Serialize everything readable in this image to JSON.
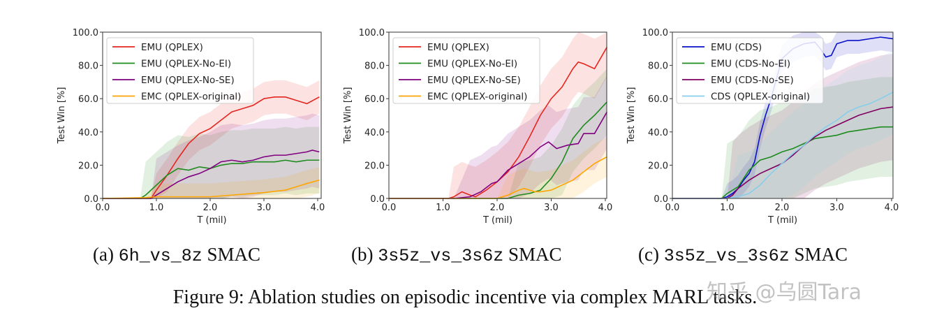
{
  "chart_data": [
    {
      "type": "line",
      "xlabel": "T (mil)",
      "ylabel": "Test Win [%]",
      "xlim": [
        0,
        4.03
      ],
      "ylim": [
        0,
        100
      ],
      "xticks": [
        "0.0",
        "1.0",
        "2.0",
        "3.0",
        "4.0"
      ],
      "yticks": [
        "0.0",
        "20.0",
        "40.0",
        "60.0",
        "80.0",
        "100.0"
      ],
      "grid": false,
      "legend_position": "top-left",
      "shaded_std_bands": true,
      "series": [
        {
          "name": "EMU (QPLEX)",
          "color": "#e5261f",
          "spread": 10,
          "x": [
            0,
            0.8,
            0.9,
            1.0,
            1.2,
            1.4,
            1.6,
            1.8,
            2.0,
            2.2,
            2.4,
            2.6,
            2.8,
            3.0,
            3.2,
            3.4,
            3.6,
            3.8,
            4.03
          ],
          "y": [
            0,
            0,
            0,
            5,
            14,
            24,
            33,
            39,
            42,
            47,
            52,
            54,
            56,
            60,
            61,
            61,
            59,
            57,
            61
          ]
        },
        {
          "name": "EMU (QPLEX-No-EI)",
          "color": "#1e8b1e",
          "spread": 20,
          "x": [
            0,
            0.7,
            0.8,
            1.0,
            1.2,
            1.4,
            1.6,
            1.8,
            2.0,
            2.2,
            2.4,
            2.6,
            2.8,
            3.0,
            3.2,
            3.4,
            3.6,
            3.8,
            4.03
          ],
          "y": [
            0,
            0,
            2,
            8,
            14,
            18,
            17,
            19,
            18,
            20,
            21,
            21,
            22,
            22,
            22,
            23,
            22,
            23,
            23
          ]
        },
        {
          "name": "EMU (QPLEX-No-SE)",
          "color": "#800080",
          "spread": 22,
          "x": [
            0,
            0.9,
            1.0,
            1.2,
            1.4,
            1.6,
            1.8,
            2.0,
            2.2,
            2.4,
            2.6,
            2.8,
            3.0,
            3.2,
            3.4,
            3.6,
            3.8,
            3.9,
            4.03
          ],
          "y": [
            0,
            0,
            2,
            6,
            10,
            13,
            15,
            18,
            22,
            23,
            22,
            23,
            25,
            26,
            26,
            27,
            28,
            29,
            28
          ]
        },
        {
          "name": "EMC (QPLEX-original)",
          "color": "#ffa500",
          "spread": 8,
          "x": [
            0,
            0.8,
            1.0,
            1.5,
            2.0,
            2.4,
            2.8,
            3.0,
            3.4,
            3.6,
            3.8,
            4.03
          ],
          "y": [
            0,
            0.5,
            1,
            1,
            1,
            2,
            3,
            3.5,
            5,
            7,
            9,
            11
          ]
        }
      ]
    },
    {
      "type": "line",
      "xlabel": "T (mil)",
      "ylabel": "Test Win [%]",
      "xlim": [
        0,
        4.03
      ],
      "ylim": [
        0,
        100
      ],
      "xticks": [
        "0.0",
        "1.0",
        "2.0",
        "3.0",
        "4.0"
      ],
      "yticks": [
        "0.0",
        "20.0",
        "40.0",
        "60.0",
        "80.0",
        "100.0"
      ],
      "grid": false,
      "legend_position": "top-left",
      "shaded_std_bands": true,
      "series": [
        {
          "name": "EMU (QPLEX)",
          "color": "#e5261f",
          "spread": 18,
          "x": [
            0,
            1.1,
            1.2,
            1.35,
            1.5,
            1.6,
            1.8,
            2.0,
            2.2,
            2.4,
            2.6,
            2.8,
            3.0,
            3.2,
            3.4,
            3.5,
            3.6,
            3.8,
            4.03
          ],
          "y": [
            0,
            0,
            1,
            4,
            2,
            1,
            5,
            10,
            16,
            25,
            37,
            50,
            60,
            67,
            78,
            82,
            81,
            78,
            91
          ]
        },
        {
          "name": "EMU (QPLEX-No-EI)",
          "color": "#1e8b1e",
          "spread": 20,
          "x": [
            0,
            2.2,
            2.4,
            2.6,
            2.8,
            3.0,
            3.2,
            3.4,
            3.6,
            3.8,
            4.03
          ],
          "y": [
            0,
            0,
            2,
            3,
            5,
            12,
            22,
            36,
            44,
            50,
            58
          ]
        },
        {
          "name": "EMU (QPLEX-No-SE)",
          "color": "#800080",
          "spread": 22,
          "x": [
            0,
            1.2,
            1.5,
            1.7,
            1.9,
            2.0,
            2.2,
            2.4,
            2.6,
            2.8,
            2.95,
            3.1,
            3.3,
            3.5,
            3.6,
            3.8,
            4.03
          ],
          "y": [
            0,
            0,
            1,
            4,
            9,
            10,
            17,
            21,
            25,
            31,
            34,
            30,
            32,
            33,
            39,
            39,
            52
          ]
        },
        {
          "name": "EMC (QPLEX-original)",
          "color": "#ffa500",
          "spread": 12,
          "x": [
            0,
            2.0,
            2.2,
            2.4,
            2.5,
            2.7,
            2.8,
            3.0,
            3.2,
            3.4,
            3.6,
            3.8,
            4.03
          ],
          "y": [
            0,
            0,
            2,
            5,
            6,
            4,
            4,
            5,
            8,
            11,
            16,
            21,
            25
          ]
        }
      ]
    },
    {
      "type": "line",
      "xlabel": "T (mil)",
      "ylabel": "Test Win [%]",
      "xlim": [
        0,
        4.03
      ],
      "ylim": [
        0,
        100
      ],
      "xticks": [
        "0.0",
        "1.0",
        "2.0",
        "3.0",
        "4.0"
      ],
      "yticks": [
        "0.0",
        "20.0",
        "40.0",
        "60.0",
        "80.0",
        "100.0"
      ],
      "grid": false,
      "legend_position": "top-left",
      "shaded_std_bands": true,
      "series": [
        {
          "name": "EMU (CDS)",
          "color": "#0a10c8",
          "spread": 8,
          "x": [
            0,
            0.9,
            1.0,
            1.1,
            1.2,
            1.3,
            1.4,
            1.5,
            1.6,
            1.7,
            1.8,
            1.9,
            2.0,
            2.2,
            2.4,
            2.6,
            2.7,
            2.8,
            2.9,
            3.0,
            3.2,
            3.4,
            3.6,
            3.8,
            4.03
          ],
          "y": [
            0,
            0,
            1,
            3,
            6,
            11,
            15,
            22,
            38,
            50,
            60,
            72,
            84,
            90,
            93,
            94,
            90,
            85,
            86,
            93,
            95,
            95,
            96,
            97,
            96
          ]
        },
        {
          "name": "EMU (CDS-No-EI)",
          "color": "#1e8b1e",
          "spread": 30,
          "x": [
            0,
            0.9,
            1.0,
            1.2,
            1.4,
            1.6,
            1.8,
            2.0,
            2.2,
            2.4,
            2.6,
            2.8,
            3.0,
            3.2,
            3.4,
            3.6,
            3.8,
            4.03
          ],
          "y": [
            0,
            0,
            3,
            7,
            17,
            23,
            25,
            28,
            30,
            33,
            36,
            37,
            38,
            40,
            41,
            42,
            43,
            43
          ]
        },
        {
          "name": "EMU (CDS-No-SE)",
          "color": "#800060",
          "spread": 32,
          "x": [
            0,
            1.0,
            1.1,
            1.2,
            1.4,
            1.6,
            1.8,
            2.0,
            2.2,
            2.4,
            2.6,
            2.8,
            3.0,
            3.2,
            3.4,
            3.6,
            3.8,
            4.03
          ],
          "y": [
            0,
            0,
            2,
            6,
            11,
            15,
            18,
            21,
            26,
            32,
            37,
            41,
            44,
            47,
            50,
            52,
            54,
            55
          ]
        },
        {
          "name": "CDS (QPLEX-original)",
          "color": "#87ceeb",
          "spread": 25,
          "x": [
            0,
            1.0,
            1.2,
            1.4,
            1.6,
            1.8,
            2.0,
            2.2,
            2.4,
            2.6,
            2.8,
            3.0,
            3.2,
            3.4,
            3.6,
            3.8,
            4.03
          ],
          "y": [
            0,
            0,
            1,
            3,
            8,
            15,
            21,
            27,
            32,
            38,
            43,
            47,
            52,
            55,
            57,
            60,
            64
          ]
        }
      ]
    }
  ],
  "captions": [
    {
      "prefix": "(a) ",
      "task": "6h_vs_8z",
      "suffix": " SMAC"
    },
    {
      "prefix": "(b) ",
      "task": "3s5z_vs_3s6z",
      "suffix": " SMAC"
    },
    {
      "prefix": "(c) ",
      "task": "3s5z_vs_3s6z",
      "suffix": " SMAC"
    }
  ],
  "figure_caption": "Figure 9: Ablation studies on episodic incentive via complex MARL tasks.",
  "watermark": "知乎 @乌圆Tara"
}
